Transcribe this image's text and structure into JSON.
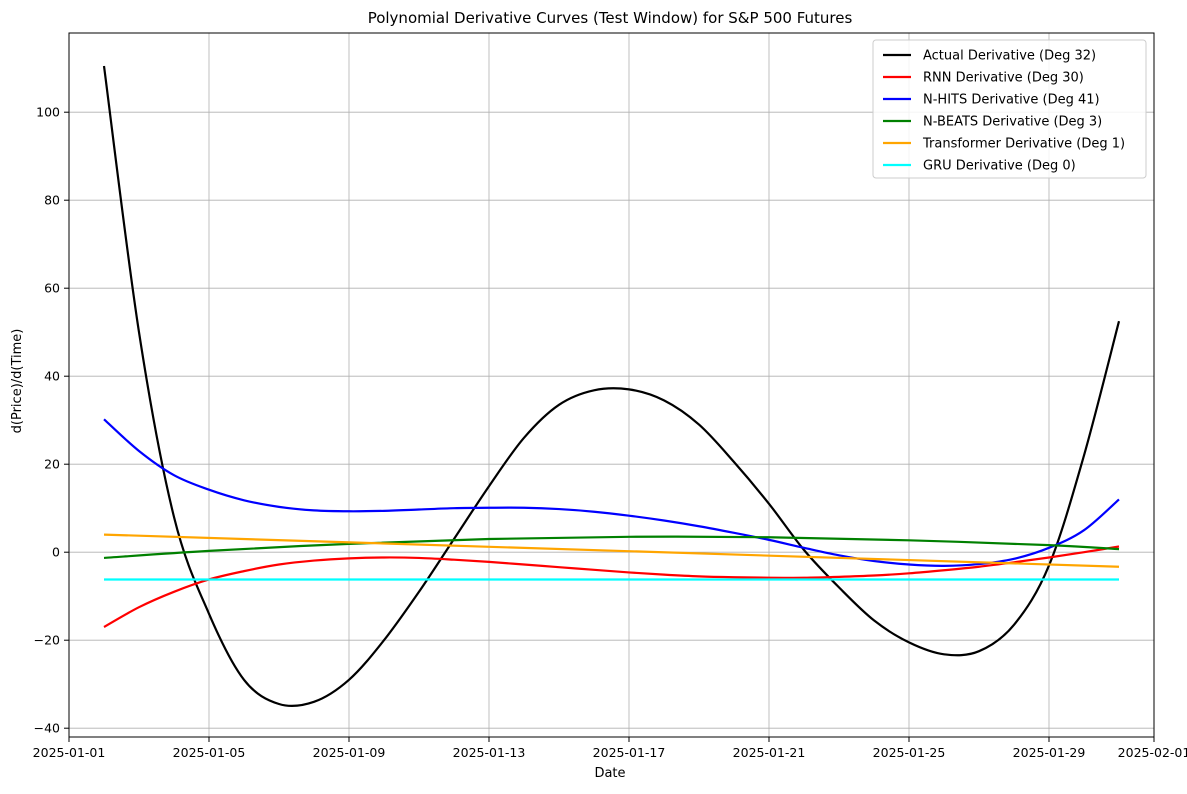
{
  "chart_data": {
    "type": "line",
    "title": "Polynomial Derivative Curves (Test Window) for S&P 500 Futures",
    "xlabel": "Date",
    "ylabel": "d(Price)/d(Time)",
    "x_axis": {
      "type": "date",
      "range": [
        "2025-01-01",
        "2025-02-01"
      ],
      "tick_labels": [
        "2025-01-01",
        "2025-01-05",
        "2025-01-09",
        "2025-01-13",
        "2025-01-17",
        "2025-01-21",
        "2025-01-25",
        "2025-01-29",
        "2025-02-01"
      ]
    },
    "y_axis": {
      "range": [
        -42,
        118
      ],
      "tick_values": [
        -40,
        -20,
        0,
        20,
        40,
        60,
        80,
        100
      ]
    },
    "grid": true,
    "legend_position": "top-right",
    "series": [
      {
        "name": "Actual Derivative (Deg 32)",
        "color": "#000000",
        "points": [
          [
            "2025-01-02",
            110.5
          ],
          [
            "2025-01-03",
            50
          ],
          [
            "2025-01-04",
            8
          ],
          [
            "2025-01-05",
            -14
          ],
          [
            "2025-01-06",
            -29
          ],
          [
            "2025-01-07",
            -34.5
          ],
          [
            "2025-01-08",
            -34
          ],
          [
            "2025-01-09",
            -29
          ],
          [
            "2025-01-10",
            -20
          ],
          [
            "2025-01-11",
            -9
          ],
          [
            "2025-01-12",
            3
          ],
          [
            "2025-01-13",
            15
          ],
          [
            "2025-01-14",
            26
          ],
          [
            "2025-01-15",
            33.5
          ],
          [
            "2025-01-16",
            36.8
          ],
          [
            "2025-01-17",
            37
          ],
          [
            "2025-01-18",
            34.5
          ],
          [
            "2025-01-19",
            29
          ],
          [
            "2025-01-20",
            20.5
          ],
          [
            "2025-01-21",
            11
          ],
          [
            "2025-01-22",
            0.5
          ],
          [
            "2025-01-23",
            -8
          ],
          [
            "2025-01-24",
            -15.5
          ],
          [
            "2025-01-25",
            -20.5
          ],
          [
            "2025-01-26",
            -23.2
          ],
          [
            "2025-01-27",
            -22.5
          ],
          [
            "2025-01-28",
            -16.5
          ],
          [
            "2025-01-29",
            -3
          ],
          [
            "2025-01-30",
            22
          ],
          [
            "2025-01-31",
            52.5
          ]
        ]
      },
      {
        "name": "RNN Derivative (Deg 30)",
        "color": "#ff0000",
        "points": [
          [
            "2025-01-02",
            -17
          ],
          [
            "2025-01-03",
            -12.5
          ],
          [
            "2025-01-04",
            -9
          ],
          [
            "2025-01-05",
            -6.2
          ],
          [
            "2025-01-06",
            -4.3
          ],
          [
            "2025-01-07",
            -2.8
          ],
          [
            "2025-01-08",
            -1.9
          ],
          [
            "2025-01-09",
            -1.4
          ],
          [
            "2025-01-10",
            -1.2
          ],
          [
            "2025-01-11",
            -1.3
          ],
          [
            "2025-01-12",
            -1.7
          ],
          [
            "2025-01-13",
            -2.2
          ],
          [
            "2025-01-14",
            -2.8
          ],
          [
            "2025-01-15",
            -3.4
          ],
          [
            "2025-01-16",
            -4.0
          ],
          [
            "2025-01-17",
            -4.6
          ],
          [
            "2025-01-18",
            -5.1
          ],
          [
            "2025-01-19",
            -5.5
          ],
          [
            "2025-01-20",
            -5.7
          ],
          [
            "2025-01-21",
            -5.8
          ],
          [
            "2025-01-22",
            -5.8
          ],
          [
            "2025-01-23",
            -5.6
          ],
          [
            "2025-01-24",
            -5.3
          ],
          [
            "2025-01-25",
            -4.8
          ],
          [
            "2025-01-26",
            -4.1
          ],
          [
            "2025-01-27",
            -3.3
          ],
          [
            "2025-01-28",
            -2.3
          ],
          [
            "2025-01-29",
            -1.2
          ],
          [
            "2025-01-30",
            0.0
          ],
          [
            "2025-01-31",
            1.3
          ]
        ]
      },
      {
        "name": "N-HITS Derivative (Deg 41)",
        "color": "#0000ff",
        "points": [
          [
            "2025-01-02",
            30.2
          ],
          [
            "2025-01-03",
            23
          ],
          [
            "2025-01-04",
            17.5
          ],
          [
            "2025-01-05",
            14.2
          ],
          [
            "2025-01-06",
            11.8
          ],
          [
            "2025-01-07",
            10.3
          ],
          [
            "2025-01-08",
            9.5
          ],
          [
            "2025-01-09",
            9.3
          ],
          [
            "2025-01-10",
            9.4
          ],
          [
            "2025-01-11",
            9.7
          ],
          [
            "2025-01-12",
            10.0
          ],
          [
            "2025-01-13",
            10.1
          ],
          [
            "2025-01-14",
            10.1
          ],
          [
            "2025-01-15",
            9.8
          ],
          [
            "2025-01-16",
            9.2
          ],
          [
            "2025-01-17",
            8.3
          ],
          [
            "2025-01-18",
            7.2
          ],
          [
            "2025-01-19",
            5.9
          ],
          [
            "2025-01-20",
            4.4
          ],
          [
            "2025-01-21",
            2.8
          ],
          [
            "2025-01-22",
            1.0
          ],
          [
            "2025-01-23",
            -0.7
          ],
          [
            "2025-01-24",
            -2.0
          ],
          [
            "2025-01-25",
            -2.8
          ],
          [
            "2025-01-26",
            -3.1
          ],
          [
            "2025-01-27",
            -2.7
          ],
          [
            "2025-01-28",
            -1.5
          ],
          [
            "2025-01-29",
            1.0
          ],
          [
            "2025-01-30",
            5.0
          ],
          [
            "2025-01-31",
            12
          ]
        ]
      },
      {
        "name": "N-BEATS Derivative (Deg 3)",
        "color": "#008000",
        "points": [
          [
            "2025-01-02",
            -1.3
          ],
          [
            "2025-01-05",
            0.3
          ],
          [
            "2025-01-09",
            1.9
          ],
          [
            "2025-01-13",
            3.0
          ],
          [
            "2025-01-17",
            3.5
          ],
          [
            "2025-01-21",
            3.4
          ],
          [
            "2025-01-25",
            2.7
          ],
          [
            "2025-01-29",
            1.6
          ],
          [
            "2025-01-31",
            0.7
          ]
        ]
      },
      {
        "name": "Transformer Derivative (Deg 1)",
        "color": "#ffa500",
        "points": [
          [
            "2025-01-02",
            4.0
          ],
          [
            "2025-01-31",
            -3.3
          ]
        ]
      },
      {
        "name": "GRU Derivative (Deg 0)",
        "color": "#00ffff",
        "points": [
          [
            "2025-01-02",
            -6.2
          ],
          [
            "2025-01-31",
            -6.2
          ]
        ]
      }
    ]
  }
}
